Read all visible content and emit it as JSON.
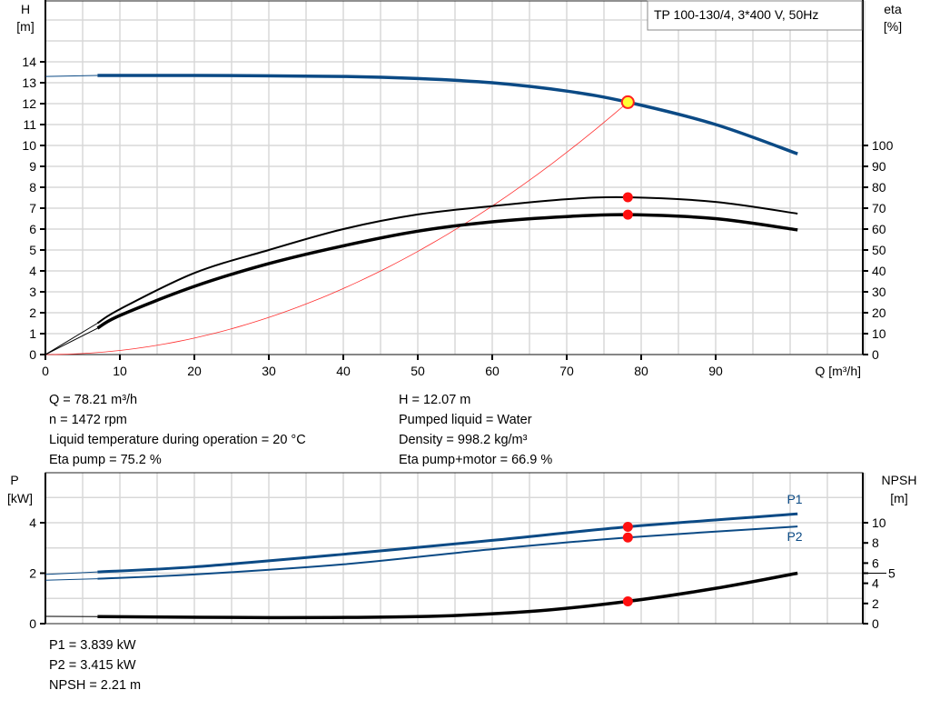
{
  "chart_data": [
    {
      "type": "line",
      "title": "TP 100-130/4, 3*400 V, 50Hz",
      "ylabel": "H",
      "yunit": "[m]",
      "y2label": "eta",
      "y2unit": "[%]",
      "xlabel": "Q [m³/h]",
      "xlim": [
        0,
        110.5
      ],
      "ylim": [
        0,
        17
      ],
      "y2lim": [
        0,
        170
      ],
      "xticks": [
        0,
        10,
        20,
        30,
        40,
        50,
        60,
        70,
        80,
        90
      ],
      "yticks": [
        0,
        1,
        2,
        3,
        4,
        5,
        6,
        7,
        8,
        9,
        10,
        11,
        12,
        13,
        14
      ],
      "y2ticks": [
        0,
        10,
        20,
        30,
        40,
        50,
        60,
        70,
        80,
        90,
        100
      ],
      "grid": true,
      "series": [
        {
          "id": "H",
          "axis": "left",
          "color": "#0b4a85",
          "x": [
            0,
            7,
            20,
            40,
            50,
            60,
            70,
            78.21,
            90,
            101
          ],
          "y": [
            13.3,
            13.35,
            13.35,
            13.3,
            13.2,
            13.0,
            12.6,
            12.07,
            11.0,
            9.6
          ]
        },
        {
          "id": "eta_pump",
          "axis": "right",
          "color": "#000000",
          "x": [
            7,
            10,
            20,
            30,
            40,
            50,
            60,
            70,
            78.21,
            90,
            101
          ],
          "y": [
            15,
            21.7,
            39,
            50,
            60,
            67,
            71,
            74.3,
            75.2,
            73,
            67.4
          ]
        },
        {
          "id": "eta_pump_motor",
          "axis": "right",
          "color": "#000000",
          "x": [
            7,
            10,
            20,
            30,
            40,
            50,
            60,
            70,
            78.21,
            90,
            101
          ],
          "y": [
            12.6,
            18.7,
            32.6,
            43.5,
            52,
            59,
            63.5,
            66,
            66.9,
            65,
            59.6
          ]
        },
        {
          "id": "system",
          "axis": "left",
          "color": "#ff3030",
          "x": [
            0,
            10,
            20,
            30,
            40,
            50,
            60,
            70,
            78.21
          ],
          "quadratic_to": 12.07
        }
      ],
      "operating_point": {
        "Q": 78.21,
        "H": 12.07,
        "eta_pump": 75.2,
        "eta_pump_motor": 66.9
      }
    },
    {
      "type": "line",
      "ylabel": "P",
      "yunit": "[kW]",
      "y2label": "NPSH",
      "y2unit": "[m]",
      "xlim": [
        0,
        110.5
      ],
      "ylim": [
        0,
        6
      ],
      "y2lim": [
        0,
        15
      ],
      "yticks": [
        0,
        2,
        4
      ],
      "y2ticks": [
        0,
        2,
        4,
        5,
        6,
        8,
        10
      ],
      "grid": true,
      "series": [
        {
          "id": "P1",
          "name": "P1",
          "axis": "left",
          "color": "#0b4a85",
          "x": [
            0,
            7,
            20,
            40,
            60,
            78.21,
            101
          ],
          "y": [
            1.95,
            2.05,
            2.25,
            2.75,
            3.3,
            3.839,
            4.35
          ]
        },
        {
          "id": "P2",
          "name": "P2",
          "axis": "left",
          "color": "#0b4a85",
          "x": [
            0,
            7,
            20,
            40,
            60,
            78.21,
            101
          ],
          "y": [
            1.72,
            1.78,
            1.95,
            2.35,
            2.95,
            3.415,
            3.85
          ]
        },
        {
          "id": "NPSH",
          "axis": "right",
          "color": "#000000",
          "x": [
            0,
            7,
            30,
            50,
            65,
            78.21,
            90,
            101
          ],
          "y": [
            0.72,
            0.7,
            0.6,
            0.7,
            1.2,
            2.21,
            3.5,
            5.0
          ]
        }
      ],
      "operating_point": {
        "Q": 78.21,
        "P1": 3.839,
        "P2": 3.415,
        "NPSH": 2.21
      }
    }
  ],
  "info": {
    "left": [
      "Q = 78.21 m³/h",
      "n = 1472 rpm",
      "Liquid temperature during operation = 20 °C",
      "Eta pump = 75.2 %"
    ],
    "right": [
      "H = 12.07 m",
      "Pumped liquid = Water",
      "Density = 998.2 kg/m³",
      "Eta pump+motor = 66.9 %"
    ],
    "bottom": [
      "P1 = 3.839 kW",
      "P2 = 3.415 kW",
      "NPSH = 2.21 m"
    ]
  }
}
